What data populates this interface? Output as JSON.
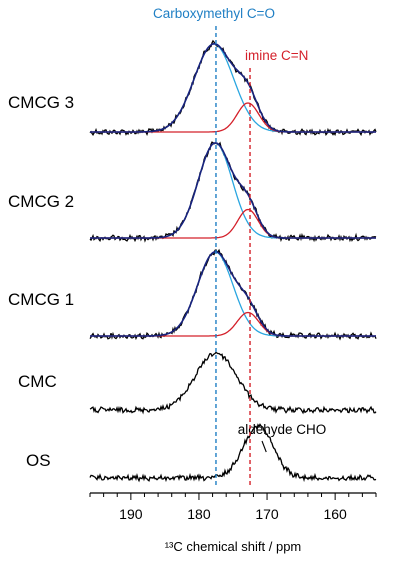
{
  "chart_data": {
    "type": "line",
    "title": "",
    "xlabel": "¹³C chemical shift / ppm",
    "ylabel": "",
    "xlim": [
      196,
      154
    ],
    "x_ticks": [
      190,
      180,
      170,
      160
    ],
    "x_reversed": true,
    "grid": false,
    "legend": "none",
    "reference_lines": [
      {
        "label": "Carboxymethyl C=O",
        "x": 177.5,
        "color": "#1f7fc4",
        "style": "dashed"
      },
      {
        "label": "imine C=N",
        "x": 172.5,
        "color": "#d4202a",
        "style": "dashed"
      }
    ],
    "annotations": [
      {
        "text": "aldehyde CHO",
        "x": 171,
        "target_series": "OS"
      }
    ],
    "spectra": [
      {
        "name": "CMCG 3",
        "color": "#000000",
        "experimental": true,
        "peaks": [
          {
            "center": 177.8,
            "height": 1.0,
            "width": 2.9,
            "color": "#2aa6e0"
          },
          {
            "center": 172.8,
            "height": 0.33,
            "width": 1.6,
            "color": "#d4202a"
          }
        ],
        "fit_color": "#1a237e"
      },
      {
        "name": "CMCG 2",
        "color": "#000000",
        "experimental": true,
        "peaks": [
          {
            "center": 177.6,
            "height": 1.0,
            "width": 2.5,
            "color": "#2aa6e0"
          },
          {
            "center": 172.8,
            "height": 0.3,
            "width": 1.5,
            "color": "#d4202a"
          }
        ],
        "fit_color": "#1a237e"
      },
      {
        "name": "CMCG 1",
        "color": "#000000",
        "experimental": true,
        "peaks": [
          {
            "center": 177.6,
            "height": 1.0,
            "width": 2.6,
            "color": "#2aa6e0"
          },
          {
            "center": 172.8,
            "height": 0.28,
            "width": 1.6,
            "color": "#d4202a"
          }
        ],
        "fit_color": "#1a237e"
      },
      {
        "name": "CMC",
        "color": "#000000",
        "experimental": false,
        "peaks": [
          {
            "center": 177.5,
            "height": 1.0,
            "width": 3.0,
            "color": "#000000"
          }
        ]
      },
      {
        "name": "OS",
        "color": "#000000",
        "experimental": false,
        "peaks": [
          {
            "center": 171.3,
            "height": 1.0,
            "width": 2.2,
            "color": "#000000"
          }
        ]
      }
    ]
  }
}
